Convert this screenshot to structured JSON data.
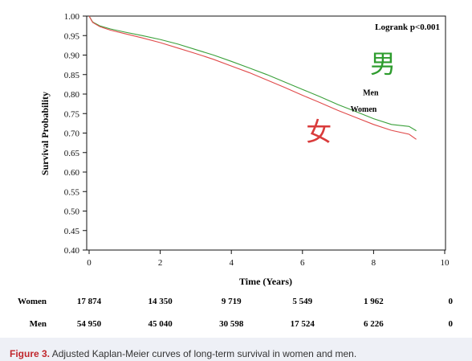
{
  "chart_data": {
    "type": "line",
    "title": "",
    "xlabel": "Time (Years)",
    "ylabel": "Survival Probability",
    "xlim": [
      0,
      10
    ],
    "ylim": [
      0.4,
      1.0
    ],
    "x_ticks": [
      0,
      2,
      4,
      6,
      8,
      10
    ],
    "y_ticks": [
      1.0,
      0.95,
      0.9,
      0.85,
      0.8,
      0.75,
      0.7,
      0.65,
      0.6,
      0.55,
      0.5,
      0.45,
      0.4
    ],
    "grid": false,
    "annotation": "Logrank p<0.001",
    "series": [
      {
        "name": "Men",
        "color": "#3aa03a",
        "x": [
          0,
          0.1,
          0.3,
          0.6,
          1,
          1.5,
          2,
          2.5,
          3,
          3.5,
          4,
          4.5,
          5,
          5.5,
          6,
          6.5,
          7,
          7.5,
          8,
          8.5,
          9,
          9.2
        ],
        "y": [
          1.0,
          0.985,
          0.975,
          0.967,
          0.959,
          0.95,
          0.94,
          0.928,
          0.914,
          0.9,
          0.884,
          0.867,
          0.85,
          0.831,
          0.812,
          0.793,
          0.773,
          0.755,
          0.737,
          0.722,
          0.717,
          0.706
        ]
      },
      {
        "name": "Women",
        "color": "#e04a4a",
        "x": [
          0,
          0.1,
          0.3,
          0.6,
          1,
          1.5,
          2,
          2.5,
          3,
          3.5,
          4,
          4.5,
          5,
          5.5,
          6,
          6.5,
          7,
          7.5,
          8,
          8.5,
          9,
          9.2
        ],
        "y": [
          1.0,
          0.984,
          0.973,
          0.964,
          0.955,
          0.944,
          0.932,
          0.918,
          0.904,
          0.889,
          0.872,
          0.855,
          0.836,
          0.817,
          0.797,
          0.778,
          0.758,
          0.74,
          0.722,
          0.707,
          0.697,
          0.684
        ]
      }
    ],
    "series_labels": [
      {
        "text": "Men",
        "x": 7.7,
        "y": 0.797
      },
      {
        "text": "Women",
        "x": 7.35,
        "y": 0.755
      }
    ],
    "handwritten": [
      {
        "text": "男",
        "color": "#2e9c2e",
        "x": 7.9,
        "y": 0.855
      },
      {
        "text": "女",
        "color": "#d93b3b",
        "x": 6.1,
        "y": 0.68
      }
    ],
    "risk_table": {
      "times": [
        0,
        2,
        4,
        6,
        8,
        10
      ],
      "rows": [
        {
          "label": "Women",
          "values": [
            "17 874",
            "14 350",
            "9 719",
            "5 549",
            "1 962",
            "0"
          ]
        },
        {
          "label": "Men",
          "values": [
            "54 950",
            "45 040",
            "30 598",
            "17 524",
            "6 226",
            "0"
          ]
        }
      ]
    }
  },
  "caption": {
    "label": "Figure 3.",
    "text": "Adjusted Kaplan-Meier curves of long-term survival in women and men."
  }
}
